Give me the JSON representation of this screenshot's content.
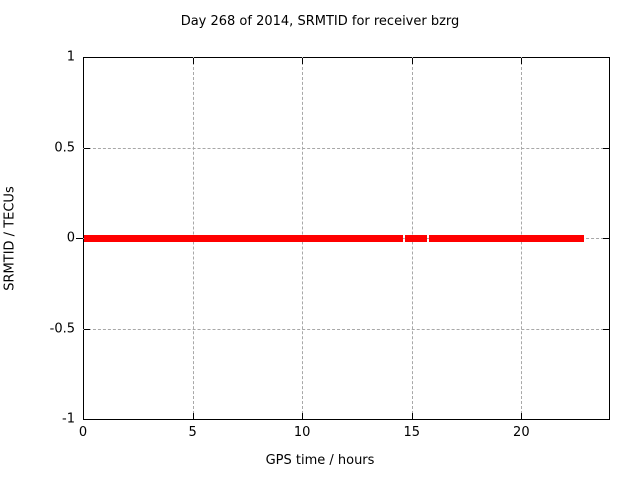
{
  "chart_data": {
    "type": "line",
    "title": "Day 268 of 2014, SRMTID for receiver bzrg",
    "xlabel": "GPS time / hours",
    "ylabel": "SRMTID / TECUs",
    "xlim": [
      0,
      24
    ],
    "ylim": [
      -1,
      1
    ],
    "grid": true,
    "legend": "none",
    "xticks": [
      {
        "value": 0,
        "label": "0"
      },
      {
        "value": 5,
        "label": "5"
      },
      {
        "value": 10,
        "label": "10"
      },
      {
        "value": 15,
        "label": "15"
      },
      {
        "value": 20,
        "label": "20"
      }
    ],
    "yticks": [
      {
        "value": 1,
        "label": "1"
      },
      {
        "value": 0.5,
        "label": "0.5"
      },
      {
        "value": 0,
        "label": "0"
      },
      {
        "value": -0.5,
        "label": "-0.5"
      },
      {
        "value": -1,
        "label": "-1"
      }
    ],
    "series": [
      {
        "name": "SRMTID",
        "color": "#ff0000",
        "line_thickness_px": 7,
        "y_value": 0,
        "x_segments": [
          [
            0.05,
            14.6
          ],
          [
            14.7,
            15.7
          ],
          [
            15.8,
            22.86
          ]
        ]
      }
    ],
    "colors": {
      "border": "#000000",
      "grid": "#a8a8a8",
      "background": "#ffffff",
      "text": "#000000"
    }
  }
}
